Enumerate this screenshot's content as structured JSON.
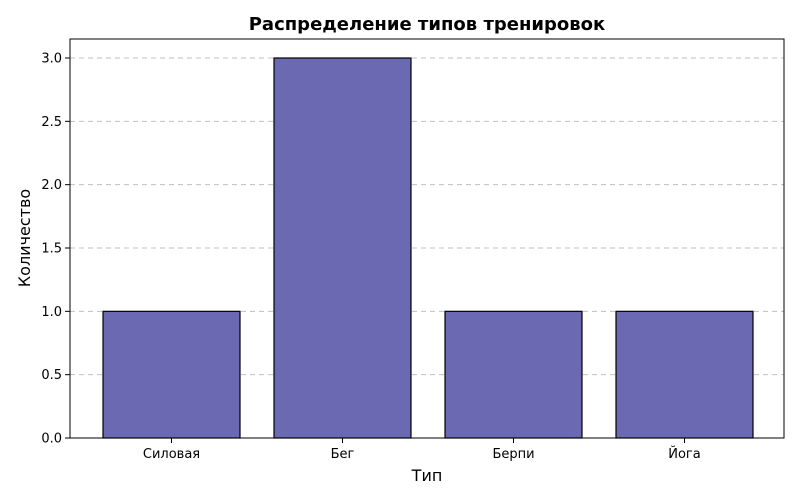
{
  "chart_data": {
    "type": "bar",
    "title": "Распределение типов тренировок",
    "xlabel": "Тип",
    "ylabel": "Количество",
    "categories": [
      "Силовая",
      "Бег",
      "Берпи",
      "Йога"
    ],
    "values": [
      1,
      3,
      1,
      1
    ],
    "ylim": [
      0,
      3.15
    ],
    "yticks": [
      "0.0",
      "0.5",
      "1.0",
      "1.5",
      "2.0",
      "2.5",
      "3.0"
    ],
    "grid": "horizontal-dashed",
    "bar_color": "#6b69b1",
    "bar_edge_color": "#000000"
  }
}
